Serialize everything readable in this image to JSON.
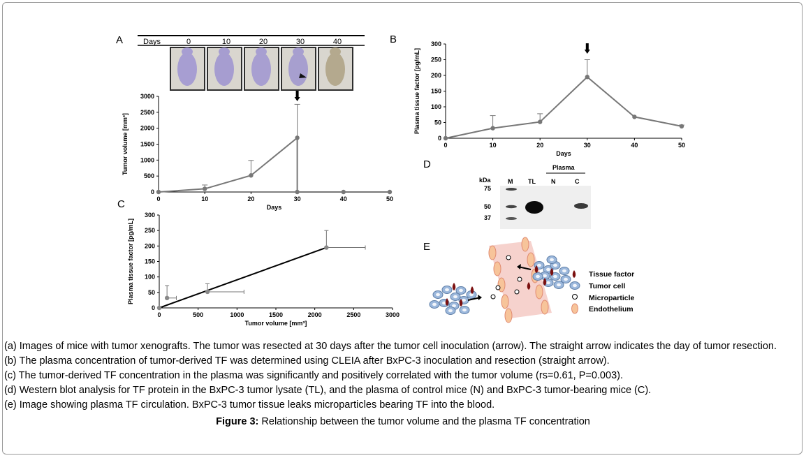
{
  "panels": {
    "A": {
      "letter": "A",
      "days_header_label": "Days",
      "days_header_values": [
        "0",
        "10",
        "20",
        "30",
        "40"
      ],
      "photo_tints": [
        "#a79ed2",
        "#a69dd0",
        "#a89fd1",
        "#a79fcf",
        "#b4a98e"
      ],
      "chart_data": {
        "type": "line",
        "xlabel": "Days",
        "ylabel": "Tumor volume [mm³]",
        "x_ticks": [
          "0",
          "10",
          "20",
          "30",
          "40",
          "50"
        ],
        "y_ticks": [
          "0",
          "500",
          "1000",
          "1500",
          "2000",
          "2500",
          "3000"
        ],
        "xlim": [
          0,
          50
        ],
        "ylim": [
          0,
          3000
        ],
        "series": [
          {
            "x": [
              0,
              10,
              20,
              30,
              30,
              40,
              50
            ],
            "y": [
              0,
              100,
              520,
              1700,
              0,
              0,
              0
            ],
            "error_plus": [
              0,
              120,
              470,
              1050,
              0,
              0,
              0
            ]
          }
        ],
        "arrow_at_x": 30
      }
    },
    "B": {
      "letter": "B",
      "chart_data": {
        "type": "line",
        "xlabel": "Days",
        "ylabel": "Plasma tissue factor [pg/mL]",
        "x_ticks": [
          "0",
          "10",
          "20",
          "30",
          "40",
          "50"
        ],
        "y_ticks": [
          "0",
          "50",
          "100",
          "150",
          "200",
          "250",
          "300"
        ],
        "xlim": [
          0,
          50
        ],
        "ylim": [
          0,
          300
        ],
        "series": [
          {
            "x": [
              0,
              10,
              20,
              30,
              40,
              50
            ],
            "y": [
              0,
              32,
              52,
              195,
              68,
              38
            ],
            "error_plus": [
              0,
              40,
              26,
              55,
              0,
              4
            ]
          }
        ],
        "arrow_at_x": 30
      }
    },
    "C": {
      "letter": "C",
      "chart_data": {
        "type": "scatter",
        "xlabel": "Tumor volume [mm³]",
        "ylabel": "Plasma tissue factor [pg/mL]",
        "x_ticks": [
          "0",
          "500",
          "1000",
          "1500",
          "2000",
          "2500",
          "3000"
        ],
        "y_ticks": [
          "0",
          "50",
          "100",
          "150",
          "200",
          "250",
          "300"
        ],
        "xlim": [
          0,
          3000
        ],
        "ylim": [
          0,
          300
        ],
        "points": [
          {
            "x": 0,
            "y": 0,
            "x_err": 0,
            "y_err": 0
          },
          {
            "x": 100,
            "y": 32,
            "x_err": 120,
            "y_err": 40
          },
          {
            "x": 620,
            "y": 52,
            "x_err": 470,
            "y_err": 26
          },
          {
            "x": 2150,
            "y": 195,
            "x_err": 500,
            "y_err": 55
          }
        ],
        "regression": {
          "x": [
            0,
            2150
          ],
          "y": [
            0,
            195
          ]
        }
      }
    },
    "D": {
      "letter": "D",
      "kda_label": "kDa",
      "markers": [
        "75",
        "50",
        "37"
      ],
      "lanes": [
        "M",
        "TL",
        "N",
        "C"
      ],
      "plasma_label": "Plasma"
    },
    "E": {
      "letter": "E",
      "legend": [
        "Tissue factor",
        "Tumor cell",
        "Microparticle",
        "Endothelium"
      ]
    }
  },
  "captions": [
    "(a) Images of mice with tumor xenografts. The tumor was resected at 30 days after the tumor cell inoculation (arrow). The straight arrow indicates the day of tumor resection.",
    "(b) The plasma concentration of tumor-derived TF was determined using CLEIA after BxPC-3 inoculation and resection (straight arrow).",
    "(c) The tumor-derived TF concentration in the plasma was significantly and positively correlated with the tumor volume (rs=0.61, P=0.003).",
    "(d) Western blot analysis for TF protein in the BxPC-3 tumor lysate (TL), and the plasma of control mice (N) and BxPC-3 tumor-bearing mice (C).",
    "(e) Image showing plasma TF circulation. BxPC-3 tumor tissue leaks microparticles bearing TF into the blood."
  ],
  "figure_title": {
    "label": "Figure 3:",
    "text": " Relationship between the tumor volume and the plasma TF concentration"
  }
}
